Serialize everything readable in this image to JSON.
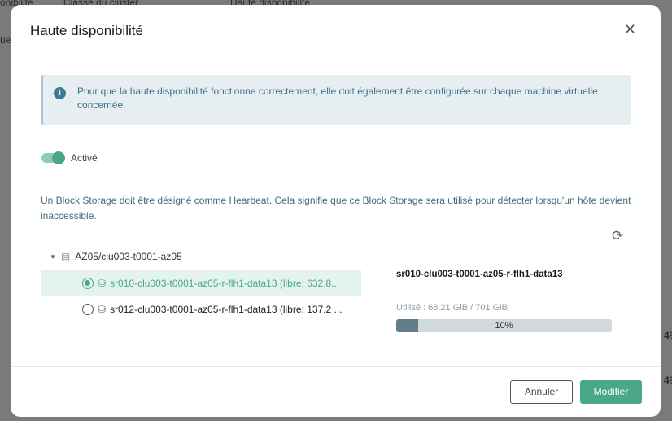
{
  "background": {
    "col1": "onibilité",
    "col2": "Classe du cluster",
    "col3": "Haute disponibilité",
    "side": "uel",
    "cell1": "4%",
    "cell2": "4%"
  },
  "modal": {
    "title": "Haute disponibilité",
    "close_icon": "close-icon",
    "info": {
      "icon": "info-icon",
      "text": "Pour que la haute disponibilité fonctionne correctement, elle doit également être configurée sur chaque machine virtuelle concernée."
    },
    "toggle": {
      "label": "Activé",
      "on": true
    },
    "description": "Un Block Storage doit être désigné comme Hearbeat. Cela signifie que ce Block Storage sera utilisé pour détecter lorsqu'un hôte devient inaccessible.",
    "tree": {
      "root": "AZ05/clu003-t0001-az05",
      "items": [
        {
          "label": "sr010-clu003-t0001-az05-r-flh1-data13 (libre: 632.8...",
          "selected": true
        },
        {
          "label": "sr012-clu003-t0001-az05-r-flh1-data13 (libre: 137.2 ...",
          "selected": false
        }
      ]
    },
    "detail": {
      "name": "sr010-clu003-t0001-az05-r-flh1-data13",
      "used": "Utilisé : 68.21 GiB / 701 GiB",
      "percent": 10,
      "percent_label": "10%"
    },
    "buttons": {
      "cancel": "Annuler",
      "submit": "Modifier"
    },
    "colors": {
      "accent": "#4aa78a",
      "info_bg": "#e6eef1",
      "bar_fill": "#647d8b"
    }
  }
}
